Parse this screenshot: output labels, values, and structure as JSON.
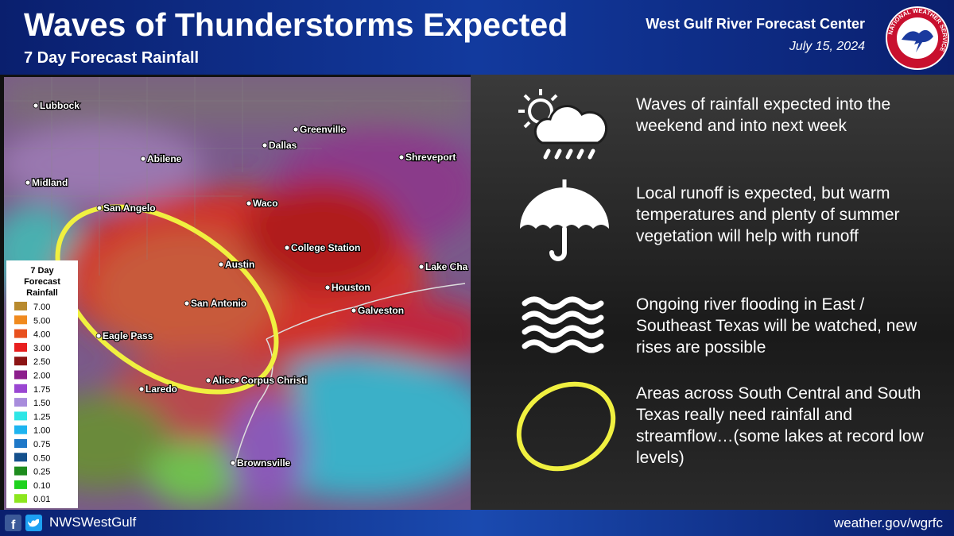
{
  "header": {
    "title": "Waves of Thunderstorms Expected",
    "subtitle": "7 Day Forecast Rainfall",
    "office": "West Gulf River Forecast Center",
    "date": "July 15, 2024",
    "seal_text": "NATIONAL WEATHER SERVICE"
  },
  "map": {
    "cities": [
      "Lubbock",
      "Greenville",
      "Dallas",
      "Abilene",
      "Shreveport",
      "Midland",
      "San Angelo",
      "Waco",
      "College Station",
      "Austin",
      "Lake Cha",
      "Houston",
      "San Antonio",
      "Galveston",
      "Eagle Pass",
      "Alice",
      "Corpus Christi",
      "Laredo",
      "Brownsville"
    ]
  },
  "legend": {
    "title": "7 Day Forecast Rainfall",
    "items": [
      {
        "label": "7.00",
        "color": "#b88a2e"
      },
      {
        "label": "5.00",
        "color": "#f08a1e"
      },
      {
        "label": "4.00",
        "color": "#e8501e"
      },
      {
        "label": "3.00",
        "color": "#e81e1e"
      },
      {
        "label": "2.50",
        "color": "#8c1414"
      },
      {
        "label": "2.00",
        "color": "#8c1e8c"
      },
      {
        "label": "1.75",
        "color": "#9a46d2"
      },
      {
        "label": "1.50",
        "color": "#a88cdc"
      },
      {
        "label": "1.25",
        "color": "#2ee6e6"
      },
      {
        "label": "1.00",
        "color": "#1eb4f0"
      },
      {
        "label": "0.75",
        "color": "#1e78c8"
      },
      {
        "label": "0.50",
        "color": "#14508c"
      },
      {
        "label": "0.25",
        "color": "#1e8c1e"
      },
      {
        "label": "0.10",
        "color": "#1ed21e"
      },
      {
        "label": "0.01",
        "color": "#8ce61e"
      }
    ]
  },
  "bullets": [
    {
      "text": "Waves of rainfall expected into the weekend and into next week"
    },
    {
      "text": "Local runoff is expected, but warm temperatures and plenty of summer vegetation will help with runoff"
    },
    {
      "text": "Ongoing river flooding in East / Southeast Texas will be watched, new rises are possible"
    },
    {
      "text": "Areas across South Central and South Texas really need rainfall and streamflow…(some lakes at record low levels)"
    }
  ],
  "footer": {
    "handle": "NWSWestGulf",
    "url": "weather.gov/wgrfc"
  }
}
